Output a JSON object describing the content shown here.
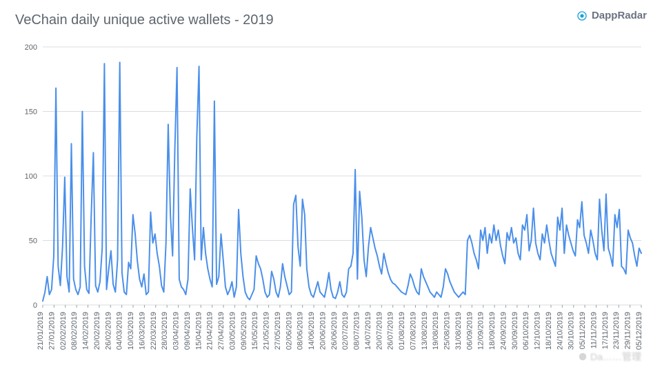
{
  "title": "VeChain daily unique active wallets - 2019",
  "brand": {
    "name": "DappRadar",
    "icon_color": "#19a0d8"
  },
  "watermark": "Da……管理",
  "chart": {
    "type": "line",
    "background_color": "#ffffff",
    "line_color": "#4a8fea",
    "line_width": 2,
    "grid_color": "#d8dcdf",
    "axis_color": "#9aa1a7",
    "tick_font_size": 11,
    "tick_color": "#5d656d",
    "title_color": "#5d656d",
    "title_fontsize": 20,
    "ylim": [
      0,
      200
    ],
    "ytick_step": 50,
    "yticks": [
      0,
      50,
      100,
      150,
      200
    ],
    "x_labels": [
      "21/01/2019",
      "27/01/2019",
      "02/02/2019",
      "08/02/2019",
      "14/02/2019",
      "20/02/2019",
      "26/02/2019",
      "04/03/2019",
      "10/03/2019",
      "16/03/2019",
      "22/03/2019",
      "28/03/2019",
      "03/04/2019",
      "09/04/2019",
      "15/04/2019",
      "21/04/2019",
      "27/04/2019",
      "03/05/2019",
      "09/05/2019",
      "15/05/2019",
      "21/05/2019",
      "27/05/2019",
      "02/06/2019",
      "08/06/2019",
      "14/06/2019",
      "20/06/2019",
      "26/06/2019",
      "02/07/2019",
      "08/07/2019",
      "14/07/2019",
      "20/07/2019",
      "26/07/2019",
      "01/08/2019",
      "07/08/2019",
      "13/08/2019",
      "19/08/2019",
      "25/08/2019",
      "31/08/2019",
      "06/09/2019",
      "12/09/2019",
      "18/09/2019",
      "24/09/2019",
      "30/09/2019",
      "06/10/2019",
      "12/10/2019",
      "18/10/2019",
      "24/10/2019",
      "30/10/2019",
      "05/11/2019",
      "11/11/2019",
      "17/11/2019",
      "23/11/2019",
      "29/11/2019",
      "05/12/2019"
    ],
    "values": [
      3,
      10,
      22,
      8,
      12,
      38,
      168,
      30,
      15,
      45,
      99,
      22,
      10,
      125,
      20,
      12,
      8,
      14,
      150,
      30,
      12,
      9,
      68,
      118,
      15,
      10,
      18,
      44,
      187,
      12,
      28,
      42,
      16,
      10,
      35,
      188,
      25,
      10,
      8,
      33,
      28,
      70,
      55,
      34,
      20,
      14,
      24,
      8,
      10,
      72,
      48,
      55,
      40,
      30,
      15,
      10,
      48,
      140,
      70,
      38,
      120,
      184,
      20,
      14,
      12,
      8,
      20,
      90,
      60,
      35,
      130,
      185,
      35,
      60,
      40,
      28,
      20,
      14,
      158,
      16,
      22,
      55,
      35,
      14,
      8,
      12,
      18,
      6,
      14,
      74,
      40,
      22,
      10,
      6,
      4,
      8,
      12,
      38,
      32,
      28,
      20,
      10,
      6,
      8,
      26,
      20,
      10,
      6,
      14,
      32,
      22,
      15,
      8,
      10,
      78,
      85,
      45,
      30,
      82,
      70,
      28,
      14,
      8,
      6,
      12,
      18,
      10,
      8,
      6,
      14,
      25,
      12,
      6,
      5,
      10,
      18,
      8,
      6,
      10,
      28,
      30,
      40,
      105,
      20,
      88,
      68,
      35,
      22,
      45,
      60,
      52,
      44,
      38,
      30,
      24,
      40,
      32,
      25,
      20,
      17,
      16,
      14,
      12,
      10,
      9,
      8,
      15,
      24,
      20,
      14,
      10,
      8,
      28,
      22,
      18,
      14,
      10,
      8,
      6,
      10,
      8,
      6,
      14,
      28,
      24,
      18,
      14,
      10,
      8,
      6,
      8,
      10,
      8,
      50,
      54,
      48,
      40,
      35,
      28,
      58,
      50,
      60,
      40,
      55,
      48,
      62,
      50,
      58,
      46,
      38,
      32,
      56,
      50,
      60,
      48,
      52,
      40,
      35,
      62,
      58,
      70,
      42,
      50,
      75,
      48,
      40,
      35,
      55,
      48,
      62,
      50,
      40,
      35,
      30,
      68,
      58,
      75,
      40,
      62,
      54,
      48,
      42,
      38,
      66,
      60,
      80,
      54,
      48,
      40,
      58,
      50,
      40,
      35,
      82,
      58,
      42,
      86,
      44,
      38,
      30,
      70,
      60,
      74,
      30,
      28,
      24,
      58,
      52,
      48,
      38,
      30,
      44,
      40
    ]
  }
}
